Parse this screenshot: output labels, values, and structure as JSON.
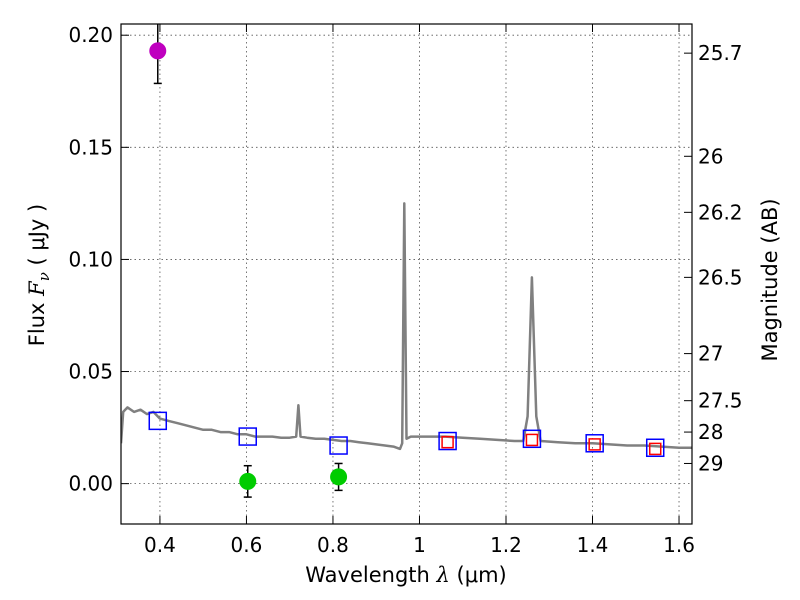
{
  "chart_data": {
    "type": "scatter",
    "xlabel": "Wavelength",
    "xlabel_symbol": "λ",
    "xlabel_unit": "(μm)",
    "ylabel": "Flux",
    "ylabel_symbol": "F",
    "ylabel_subscript": "ν",
    "ylabel_unit": "( μJy )",
    "y2label": "Magnitude (AB)",
    "xlim": [
      0.31,
      1.63
    ],
    "ylim": [
      -0.018,
      0.205
    ],
    "grid": true,
    "xticks": [
      0.4,
      0.6,
      0.8,
      1.0,
      1.2,
      1.4,
      1.6
    ],
    "xtick_labels": [
      "0.4",
      "0.6",
      "0.8",
      "1",
      "1.2",
      "1.4",
      "1.6"
    ],
    "yticks": [
      0.0,
      0.05,
      0.1,
      0.15,
      0.2
    ],
    "ytick_labels": [
      "0.00",
      "0.05",
      "0.10",
      "0.15",
      "0.20"
    ],
    "right_ticks": [
      {
        "label": "25.7",
        "flux": 0.192
      },
      {
        "label": "26",
        "flux": 0.146
      },
      {
        "label": "26.2",
        "flux": 0.121
      },
      {
        "label": "26.5",
        "flux": 0.092
      },
      {
        "label": "27",
        "flux": 0.058
      },
      {
        "label": "27.5",
        "flux": 0.037
      },
      {
        "label": "28",
        "flux": 0.023
      },
      {
        "label": "29",
        "flux": 0.009
      }
    ],
    "series": [
      {
        "name": "model-spectrum",
        "type": "line",
        "color": "#808080",
        "points": [
          [
            0.31,
            0.018
          ],
          [
            0.315,
            0.032
          ],
          [
            0.325,
            0.034
          ],
          [
            0.34,
            0.032
          ],
          [
            0.355,
            0.033
          ],
          [
            0.37,
            0.031
          ],
          [
            0.385,
            0.032
          ],
          [
            0.4,
            0.029
          ],
          [
            0.42,
            0.028
          ],
          [
            0.44,
            0.027
          ],
          [
            0.46,
            0.026
          ],
          [
            0.48,
            0.025
          ],
          [
            0.5,
            0.024
          ],
          [
            0.52,
            0.024
          ],
          [
            0.54,
            0.023
          ],
          [
            0.56,
            0.023
          ],
          [
            0.58,
            0.022
          ],
          [
            0.6,
            0.022
          ],
          [
            0.62,
            0.021
          ],
          [
            0.64,
            0.021
          ],
          [
            0.66,
            0.021
          ],
          [
            0.68,
            0.0205
          ],
          [
            0.7,
            0.0205
          ],
          [
            0.715,
            0.021
          ],
          [
            0.72,
            0.035
          ],
          [
            0.725,
            0.021
          ],
          [
            0.74,
            0.0205
          ],
          [
            0.76,
            0.02
          ],
          [
            0.78,
            0.02
          ],
          [
            0.8,
            0.0195
          ],
          [
            0.82,
            0.019
          ],
          [
            0.84,
            0.019
          ],
          [
            0.86,
            0.0185
          ],
          [
            0.88,
            0.018
          ],
          [
            0.9,
            0.0175
          ],
          [
            0.92,
            0.017
          ],
          [
            0.94,
            0.0165
          ],
          [
            0.955,
            0.0155
          ],
          [
            0.96,
            0.018
          ],
          [
            0.965,
            0.125
          ],
          [
            0.97,
            0.02
          ],
          [
            0.98,
            0.021
          ],
          [
            1.0,
            0.021
          ],
          [
            1.03,
            0.021
          ],
          [
            1.06,
            0.021
          ],
          [
            1.1,
            0.0205
          ],
          [
            1.14,
            0.02
          ],
          [
            1.18,
            0.0195
          ],
          [
            1.22,
            0.019
          ],
          [
            1.24,
            0.019
          ],
          [
            1.25,
            0.03
          ],
          [
            1.26,
            0.092
          ],
          [
            1.27,
            0.03
          ],
          [
            1.28,
            0.019
          ],
          [
            1.32,
            0.0185
          ],
          [
            1.36,
            0.018
          ],
          [
            1.4,
            0.018
          ],
          [
            1.44,
            0.0175
          ],
          [
            1.48,
            0.017
          ],
          [
            1.52,
            0.017
          ],
          [
            1.56,
            0.0165
          ],
          [
            1.6,
            0.016
          ],
          [
            1.63,
            0.016
          ]
        ]
      },
      {
        "name": "model-bandpass",
        "type": "marker",
        "marker": "square-open",
        "color": "#0000ff",
        "points": [
          [
            0.395,
            0.028
          ],
          [
            0.603,
            0.021
          ],
          [
            0.813,
            0.017
          ],
          [
            1.065,
            0.019
          ],
          [
            1.26,
            0.02
          ],
          [
            1.405,
            0.018
          ],
          [
            1.545,
            0.016
          ]
        ]
      },
      {
        "name": "observed-red",
        "type": "marker",
        "marker": "square-open",
        "color": "#ff0000",
        "points": [
          [
            1.065,
            0.0185
          ],
          [
            1.26,
            0.0195
          ],
          [
            1.405,
            0.0175
          ],
          [
            1.545,
            0.0155
          ]
        ]
      },
      {
        "name": "observed-green",
        "type": "errorbar",
        "marker": "circle",
        "color": "#00cc00",
        "points": [
          {
            "x": 0.603,
            "y": 0.001,
            "yerr": 0.007
          },
          {
            "x": 0.813,
            "y": 0.003,
            "yerr": 0.006
          }
        ]
      },
      {
        "name": "observed-magenta",
        "type": "errorbar",
        "marker": "circle",
        "color": "#bf00bf",
        "points": [
          {
            "x": 0.395,
            "y": 0.193,
            "yerr": 0.0145
          }
        ]
      }
    ],
    "colors": {
      "frame": "#000000",
      "grid": "#555555",
      "errorbar": "#000000"
    }
  }
}
